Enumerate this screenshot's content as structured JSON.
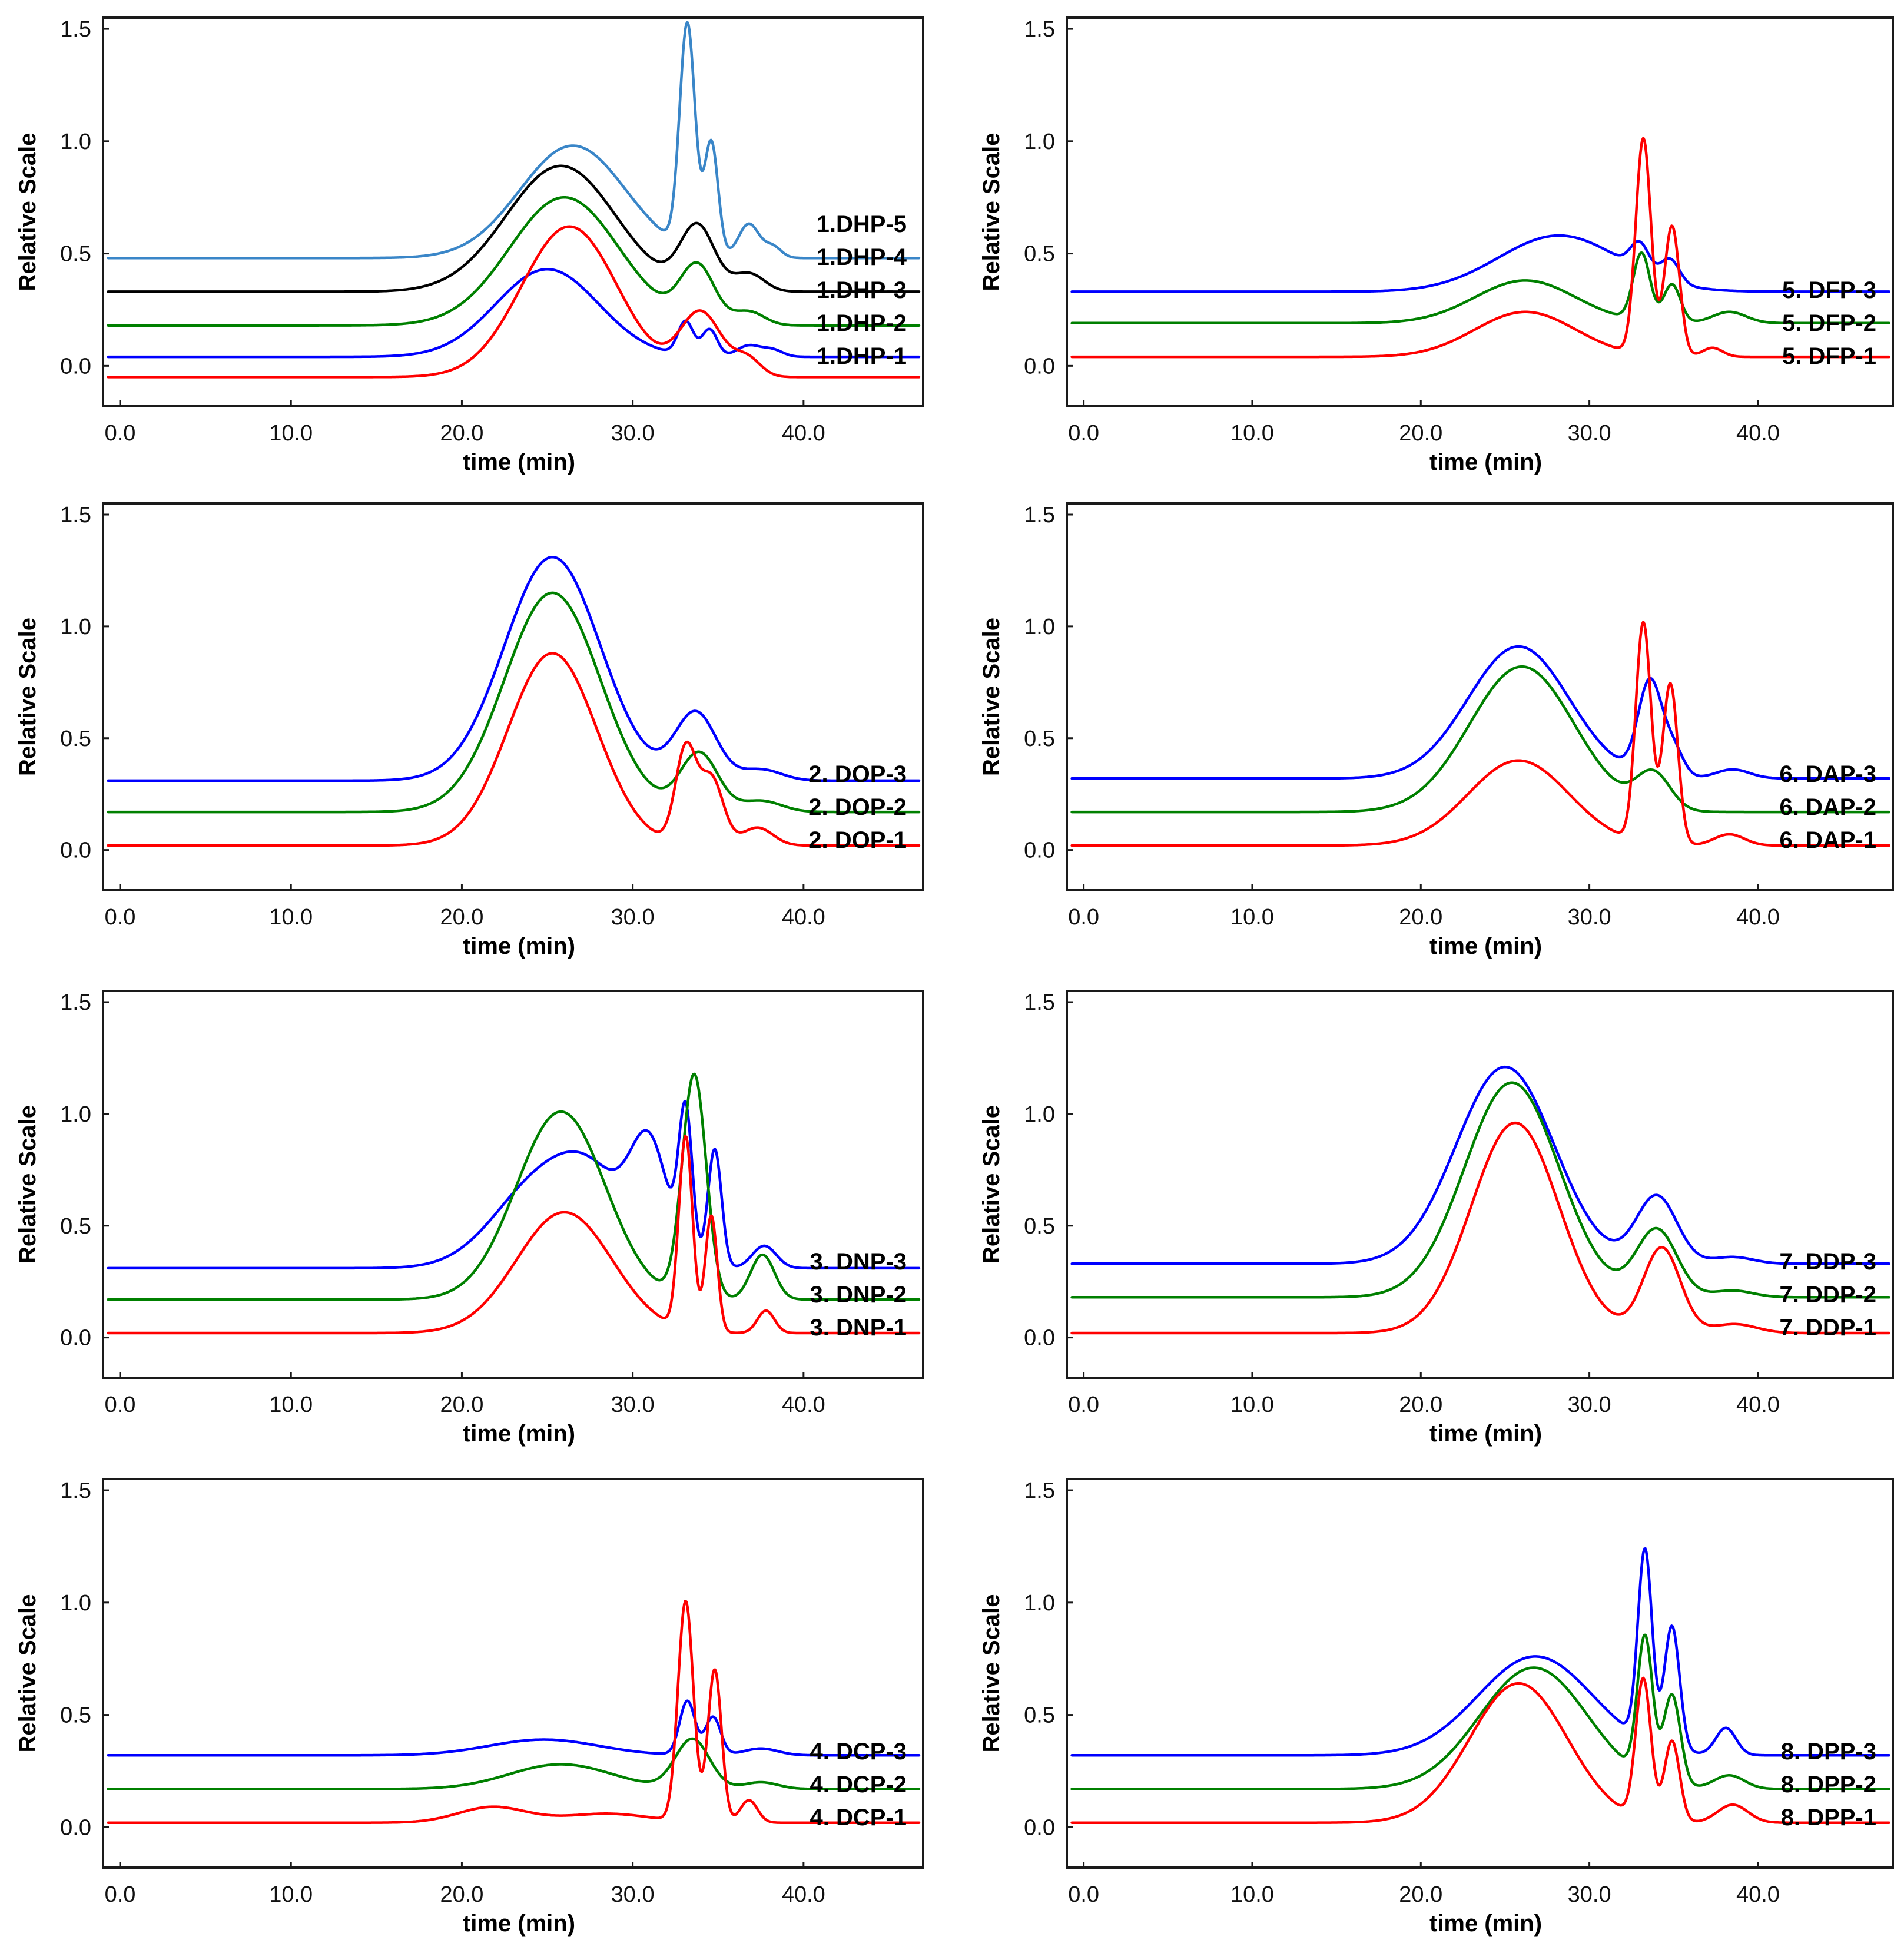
{
  "figure": {
    "type": "chromatogram-grid",
    "rows": 4,
    "cols": 2
  },
  "axes": {
    "xlabel": "time (min)",
    "ylabel": "Relative Scale",
    "xticks": [
      "0.0",
      "10.0",
      "20.0",
      "30.0",
      "40.0"
    ],
    "yticks": [
      "0.0",
      "0.5",
      "1.0",
      "1.5"
    ]
  },
  "colors": {
    "red": "#ff0000",
    "green": "#008000",
    "blue": "#0000ff",
    "black": "#000000",
    "lightblue": "#3a86c8"
  },
  "chart_data": [
    {
      "type": "line",
      "title": "",
      "xlabel": "time (min)",
      "ylabel": "Relative Scale",
      "xlim": [
        -1,
        47
      ],
      "ylim": [
        -0.18,
        1.55
      ],
      "series": [
        {
          "name": "1.DHP-5",
          "color": "#3a86c8",
          "baseline": 0.48,
          "peaks": [
            [
              26.5,
              0.5,
              3.1
            ],
            [
              33.2,
              1.0,
              0.45
            ],
            [
              34.6,
              0.5,
              0.4
            ],
            [
              36.8,
              0.15,
              0.6
            ],
            [
              38.2,
              0.05,
              0.5
            ]
          ]
        },
        {
          "name": "1.DHP-4",
          "color": "#000000",
          "baseline": 0.33,
          "peaks": [
            [
              25.8,
              0.56,
              3.2
            ],
            [
              33.8,
              0.28,
              1.0
            ],
            [
              36.8,
              0.08,
              0.9
            ]
          ]
        },
        {
          "name": "1.DHP-3",
          "color": "#008000",
          "baseline": 0.18,
          "peaks": [
            [
              26.0,
              0.57,
              3.2
            ],
            [
              33.8,
              0.25,
              1.0
            ],
            [
              36.8,
              0.06,
              0.9
            ]
          ]
        },
        {
          "name": "1.DHP-2",
          "color": "#0000ff",
          "baseline": 0.04,
          "peaks": [
            [
              25.0,
              0.39,
              3.0
            ],
            [
              33.1,
              0.15,
              0.45
            ],
            [
              34.5,
              0.12,
              0.45
            ],
            [
              36.8,
              0.05,
              0.7
            ],
            [
              38.2,
              0.03,
              0.6
            ]
          ]
        },
        {
          "name": "1.DHP-1",
          "color": "#ff0000",
          "baseline": -0.05,
          "peaks": [
            [
              26.3,
              0.67,
              2.8
            ],
            [
              34.0,
              0.28,
              1.2
            ],
            [
              36.7,
              0.08,
              0.8
            ]
          ]
        }
      ]
    },
    {
      "type": "line",
      "title": "",
      "xlabel": "time (min)",
      "ylabel": "Relative Scale",
      "xlim": [
        -1,
        48
      ],
      "ylim": [
        -0.18,
        1.55
      ],
      "series": [
        {
          "name": "5. DFP-3",
          "color": "#0000ff",
          "baseline": 0.33,
          "peaks": [
            [
              28.2,
              0.25,
              3.6
            ],
            [
              33.0,
              0.12,
              0.55
            ],
            [
              34.8,
              0.1,
              0.55
            ]
          ]
        },
        {
          "name": "5. DFP-2",
          "color": "#008000",
          "baseline": 0.19,
          "peaks": [
            [
              26.2,
              0.19,
              3.0
            ],
            [
              33.1,
              0.3,
              0.5
            ],
            [
              34.9,
              0.17,
              0.5
            ],
            [
              38.3,
              0.05,
              1.0
            ]
          ]
        },
        {
          "name": "5. DFP-1",
          "color": "#ff0000",
          "baseline": 0.04,
          "peaks": [
            [
              26.2,
              0.2,
              3.0
            ],
            [
              33.2,
              0.96,
              0.45
            ],
            [
              34.9,
              0.58,
              0.45
            ],
            [
              37.3,
              0.04,
              0.6
            ]
          ]
        }
      ]
    },
    {
      "type": "line",
      "title": "",
      "xlabel": "time (min)",
      "ylabel": "Relative Scale",
      "xlim": [
        -1,
        47
      ],
      "ylim": [
        -0.18,
        1.55
      ],
      "series": [
        {
          "name": "2. DOP-3",
          "color": "#0000ff",
          "baseline": 0.31,
          "peaks": [
            [
              25.3,
              1.0,
              2.8
            ],
            [
              33.7,
              0.3,
              1.2
            ],
            [
              37.5,
              0.05,
              1.2
            ]
          ]
        },
        {
          "name": "2. DOP-2",
          "color": "#008000",
          "baseline": 0.17,
          "peaks": [
            [
              25.3,
              0.98,
              2.8
            ],
            [
              33.9,
              0.26,
              1.1
            ],
            [
              37.5,
              0.05,
              1.2
            ]
          ]
        },
        {
          "name": "2. DOP-1",
          "color": "#ff0000",
          "baseline": 0.02,
          "peaks": [
            [
              25.3,
              0.86,
              2.6
            ],
            [
              33.1,
              0.42,
              0.6
            ],
            [
              34.6,
              0.3,
              0.7
            ],
            [
              37.3,
              0.08,
              0.9
            ]
          ]
        }
      ]
    },
    {
      "type": "line",
      "title": "",
      "xlabel": "time (min)",
      "ylabel": "Relative Scale",
      "xlim": [
        -1,
        48
      ],
      "ylim": [
        -0.18,
        1.55
      ],
      "series": [
        {
          "name": "6. DAP-3",
          "color": "#0000ff",
          "baseline": 0.32,
          "peaks": [
            [
              25.8,
              0.59,
              3.0
            ],
            [
              33.6,
              0.42,
              0.7
            ],
            [
              35.0,
              0.12,
              0.6
            ],
            [
              38.5,
              0.04,
              1.0
            ]
          ]
        },
        {
          "name": "6. DAP-2",
          "color": "#008000",
          "baseline": 0.17,
          "peaks": [
            [
              26.0,
              0.65,
              3.1
            ],
            [
              33.8,
              0.16,
              1.0
            ]
          ]
        },
        {
          "name": "6. DAP-1",
          "color": "#ff0000",
          "baseline": 0.02,
          "peaks": [
            [
              25.8,
              0.38,
              3.0
            ],
            [
              33.2,
              0.98,
              0.45
            ],
            [
              34.8,
              0.72,
              0.45
            ],
            [
              38.3,
              0.05,
              0.9
            ]
          ]
        }
      ]
    },
    {
      "type": "line",
      "title": "",
      "xlabel": "time (min)",
      "ylabel": "Relative Scale",
      "xlim": [
        -1,
        47
      ],
      "ylim": [
        -0.18,
        1.55
      ],
      "series": [
        {
          "name": "3. DNP-3",
          "color": "#0000ff",
          "baseline": 0.31,
          "peaks": [
            [
              24.8,
              0.4,
              2.8
            ],
            [
              28.0,
              0.25,
              2.0
            ],
            [
              31.0,
              0.49,
              1.1
            ],
            [
              33.1,
              0.65,
              0.4
            ],
            [
              34.8,
              0.53,
              0.4
            ],
            [
              37.7,
              0.1,
              0.7
            ]
          ]
        },
        {
          "name": "3. DNP-2",
          "color": "#008000",
          "baseline": 0.17,
          "peaks": [
            [
              25.8,
              0.84,
              2.6
            ],
            [
              33.6,
              1.0,
              0.7
            ],
            [
              37.6,
              0.2,
              0.7
            ]
          ]
        },
        {
          "name": "3. DNP-1",
          "color": "#ff0000",
          "baseline": 0.02,
          "peaks": [
            [
              26.0,
              0.54,
              2.8
            ],
            [
              33.1,
              0.86,
              0.4
            ],
            [
              34.6,
              0.52,
              0.35
            ],
            [
              37.8,
              0.1,
              0.5
            ]
          ]
        }
      ]
    },
    {
      "type": "line",
      "title": "",
      "xlabel": "time (min)",
      "ylabel": "Relative Scale",
      "xlim": [
        -1,
        48
      ],
      "ylim": [
        -0.18,
        1.55
      ],
      "series": [
        {
          "name": "7. DDP-3",
          "color": "#0000ff",
          "baseline": 0.33,
          "peaks": [
            [
              25.0,
              0.88,
              2.9
            ],
            [
              34.0,
              0.3,
              1.2
            ],
            [
              38.5,
              0.03,
              1.2
            ]
          ]
        },
        {
          "name": "7. DDP-2",
          "color": "#008000",
          "baseline": 0.18,
          "peaks": [
            [
              25.4,
              0.96,
              2.8
            ],
            [
              34.0,
              0.3,
              1.2
            ],
            [
              38.5,
              0.03,
              1.2
            ]
          ]
        },
        {
          "name": "7. DDP-1",
          "color": "#ff0000",
          "baseline": 0.02,
          "peaks": [
            [
              25.6,
              0.94,
              2.6
            ],
            [
              34.3,
              0.38,
              1.1
            ],
            [
              38.6,
              0.04,
              1.3
            ]
          ]
        }
      ]
    },
    {
      "type": "line",
      "title": "",
      "xlabel": "time (min)",
      "ylabel": "Relative Scale",
      "xlim": [
        -1,
        47
      ],
      "ylim": [
        -0.18,
        1.55
      ],
      "series": [
        {
          "name": "4. DCP-3",
          "color": "#0000ff",
          "baseline": 0.32,
          "peaks": [
            [
              24.8,
              0.07,
              3.2
            ],
            [
              33.2,
              0.24,
              0.45
            ],
            [
              34.7,
              0.17,
              0.45
            ],
            [
              37.5,
              0.03,
              1.0
            ]
          ]
        },
        {
          "name": "4. DCP-2",
          "color": "#008000",
          "baseline": 0.17,
          "peaks": [
            [
              25.8,
              0.11,
              3.0
            ],
            [
              33.5,
              0.22,
              1.0
            ],
            [
              37.5,
              0.03,
              1.0
            ]
          ]
        },
        {
          "name": "4. DCP-1",
          "color": "#ff0000",
          "baseline": 0.02,
          "peaks": [
            [
              21.8,
              0.07,
              2.0
            ],
            [
              28.5,
              0.04,
              2.5
            ],
            [
              33.1,
              0.98,
              0.45
            ],
            [
              34.8,
              0.68,
              0.4
            ],
            [
              36.8,
              0.1,
              0.5
            ]
          ]
        }
      ]
    },
    {
      "type": "line",
      "title": "",
      "xlabel": "time (min)",
      "ylabel": "Relative Scale",
      "xlim": [
        -1,
        48
      ],
      "ylim": [
        -0.18,
        1.55
      ],
      "series": [
        {
          "name": "8. DPP-3",
          "color": "#0000ff",
          "baseline": 0.32,
          "peaks": [
            [
              26.8,
              0.44,
              3.4
            ],
            [
              33.3,
              0.85,
              0.42
            ],
            [
              34.9,
              0.55,
              0.45
            ],
            [
              38.1,
              0.12,
              0.6
            ]
          ]
        },
        {
          "name": "8. DPP-2",
          "color": "#008000",
          "baseline": 0.17,
          "peaks": [
            [
              26.7,
              0.54,
              3.2
            ],
            [
              33.3,
              0.62,
              0.45
            ],
            [
              34.9,
              0.4,
              0.5
            ],
            [
              38.3,
              0.06,
              0.9
            ]
          ]
        },
        {
          "name": "8. DPP-1",
          "color": "#ff0000",
          "baseline": 0.02,
          "peaks": [
            [
              25.8,
              0.62,
              2.9
            ],
            [
              33.2,
              0.62,
              0.45
            ],
            [
              34.9,
              0.36,
              0.45
            ],
            [
              38.5,
              0.08,
              0.9
            ]
          ]
        }
      ]
    }
  ]
}
